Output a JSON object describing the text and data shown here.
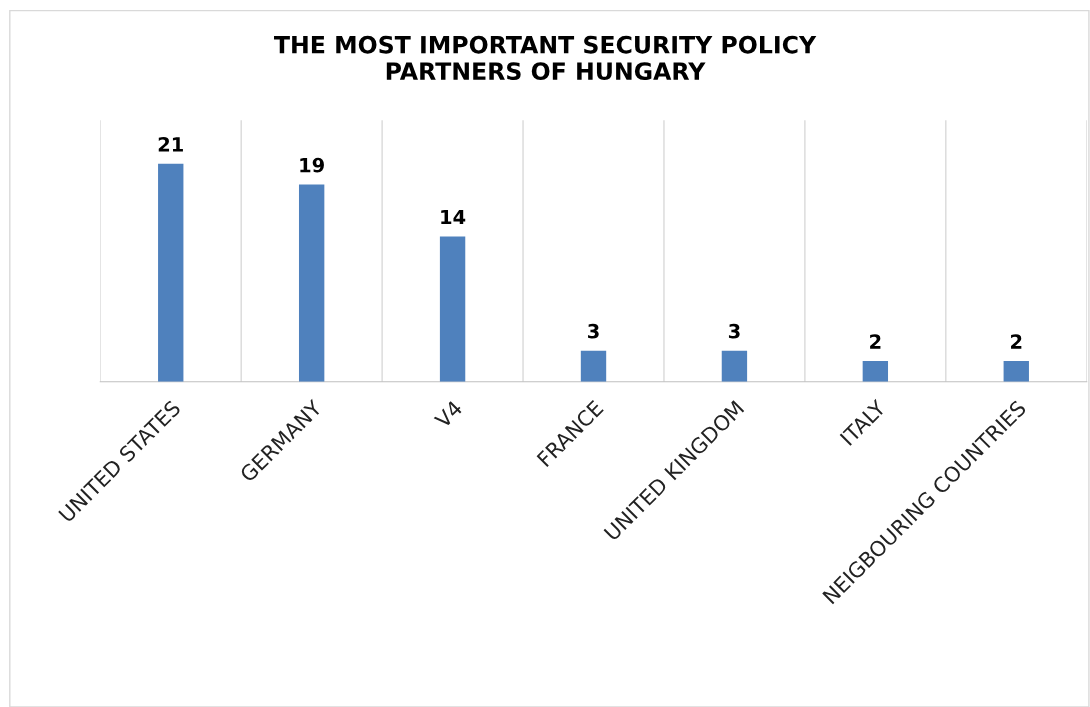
{
  "chart_data": {
    "type": "bar",
    "title": "THE MOST IMPORTANT SECURITY POLICY\nPARTNERS OF HUNGARY",
    "categories": [
      "UNITED STATES",
      "GERMANY",
      "V4",
      "FRANCE",
      "UNITED KINGDOM",
      "ITALY",
      "NEIGBOURING COUNTRIES"
    ],
    "values": [
      21,
      19,
      14,
      3,
      3,
      2,
      2
    ],
    "color": "#4f81bd",
    "tick_labels": "x",
    "data_labels": true,
    "grid": "x"
  }
}
